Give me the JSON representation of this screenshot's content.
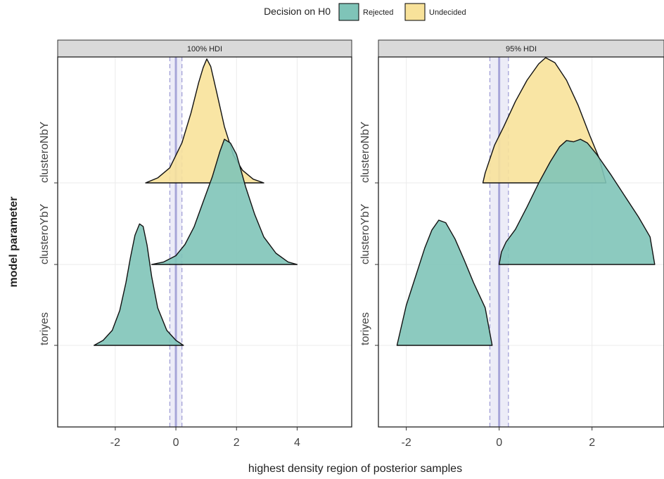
{
  "chart_data": {
    "type": "ridgeline",
    "legend": {
      "title": "Decision on H0",
      "position": "top",
      "entries": [
        {
          "label": "Rejected",
          "color": "#7fc4b8"
        },
        {
          "label": "Undecided",
          "color": "#f8e29a"
        }
      ]
    },
    "colors": {
      "Rejected": "#7fc4b8",
      "Undecided": "#f8e29a",
      "rope_line": "#9c9ad4",
      "rope_band": "#dcdcf0"
    },
    "xlabel": "highest density region of posterior samples",
    "ylabel": "model parameter",
    "parameters": [
      "toriyes",
      "clusteroYbY",
      "clusteroNbY"
    ],
    "rope": [
      -0.2,
      0.2
    ],
    "panels": [
      {
        "strip": "100% HDI",
        "xlim": [
          -3.9,
          5.8
        ],
        "xticks": [
          -2,
          0,
          2,
          4
        ],
        "xtick_labels": [
          "-2",
          "0",
          "2",
          "4"
        ],
        "ridges": [
          {
            "parameter": "toriyes",
            "decision": "Rejected",
            "range": [
              -2.7,
              0.25
            ],
            "points": [
              [
                -2.7,
                0
              ],
              [
                -2.4,
                0.04
              ],
              [
                -2.1,
                0.12
              ],
              [
                -1.85,
                0.28
              ],
              [
                -1.65,
                0.5
              ],
              [
                -1.5,
                0.7
              ],
              [
                -1.35,
                0.88
              ],
              [
                -1.2,
                0.97
              ],
              [
                -1.08,
                0.95
              ],
              [
                -0.95,
                0.8
              ],
              [
                -0.8,
                0.55
              ],
              [
                -0.6,
                0.3
              ],
              [
                -0.3,
                0.12
              ],
              [
                0,
                0.04
              ],
              [
                0.25,
                0
              ]
            ]
          },
          {
            "parameter": "clusteroYbY",
            "decision": "Rejected",
            "range": [
              -0.8,
              4.0
            ],
            "points": [
              [
                -0.8,
                0
              ],
              [
                -0.4,
                0.02
              ],
              [
                0,
                0.07
              ],
              [
                0.3,
                0.16
              ],
              [
                0.6,
                0.3
              ],
              [
                0.9,
                0.5
              ],
              [
                1.2,
                0.7
              ],
              [
                1.45,
                0.9
              ],
              [
                1.6,
                1.0
              ],
              [
                1.8,
                0.97
              ],
              [
                2.0,
                0.88
              ],
              [
                2.3,
                0.62
              ],
              [
                2.6,
                0.4
              ],
              [
                2.9,
                0.22
              ],
              [
                3.3,
                0.09
              ],
              [
                3.7,
                0.02
              ],
              [
                4.0,
                0
              ]
            ]
          },
          {
            "parameter": "clusteroNbY",
            "decision": "Undecided",
            "range": [
              -1.0,
              2.9
            ],
            "points": [
              [
                -1.0,
                0
              ],
              [
                -0.6,
                0.04
              ],
              [
                -0.2,
                0.12
              ],
              [
                0.2,
                0.32
              ],
              [
                0.5,
                0.56
              ],
              [
                0.75,
                0.8
              ],
              [
                0.9,
                0.92
              ],
              [
                1.02,
                0.99
              ],
              [
                1.15,
                0.93
              ],
              [
                1.35,
                0.72
              ],
              [
                1.6,
                0.45
              ],
              [
                1.9,
                0.22
              ],
              [
                2.2,
                0.1
              ],
              [
                2.55,
                0.03
              ],
              [
                2.9,
                0
              ]
            ]
          }
        ]
      },
      {
        "strip": "95% HDI",
        "xlim": [
          -2.6,
          3.55
        ],
        "xticks": [
          -2,
          0,
          2
        ],
        "xtick_labels": [
          "-2",
          "0",
          "2"
        ],
        "ridges": [
          {
            "parameter": "toriyes",
            "decision": "Rejected",
            "range": [
              -2.2,
              -0.15
            ],
            "points": [
              [
                -2.2,
                0
              ],
              [
                -2.0,
                0.32
              ],
              [
                -1.8,
                0.55
              ],
              [
                -1.6,
                0.78
              ],
              [
                -1.45,
                0.92
              ],
              [
                -1.3,
                1.0
              ],
              [
                -1.15,
                0.98
              ],
              [
                -0.95,
                0.85
              ],
              [
                -0.75,
                0.68
              ],
              [
                -0.55,
                0.5
              ],
              [
                -0.3,
                0.3
              ],
              [
                -0.15,
                0
              ]
            ]
          },
          {
            "parameter": "clusteroYbY",
            "decision": "Rejected",
            "range": [
              0.0,
              3.35
            ],
            "points": [
              [
                0,
                0
              ],
              [
                0.05,
                0.1
              ],
              [
                0.15,
                0.18
              ],
              [
                0.35,
                0.28
              ],
              [
                0.6,
                0.46
              ],
              [
                0.85,
                0.65
              ],
              [
                1.1,
                0.82
              ],
              [
                1.3,
                0.94
              ],
              [
                1.45,
                0.99
              ],
              [
                1.6,
                0.98
              ],
              [
                1.75,
                1.0
              ],
              [
                1.9,
                0.97
              ],
              [
                2.1,
                0.88
              ],
              [
                2.4,
                0.72
              ],
              [
                2.7,
                0.55
              ],
              [
                3.0,
                0.38
              ],
              [
                3.25,
                0.22
              ],
              [
                3.35,
                0
              ]
            ]
          },
          {
            "parameter": "clusteroNbY",
            "decision": "Undecided",
            "range": [
              -0.35,
              2.3
            ],
            "points": [
              [
                -0.35,
                0
              ],
              [
                -0.3,
                0.08
              ],
              [
                -0.1,
                0.3
              ],
              [
                0.1,
                0.45
              ],
              [
                0.35,
                0.65
              ],
              [
                0.6,
                0.82
              ],
              [
                0.85,
                0.95
              ],
              [
                1.0,
                1.0
              ],
              [
                1.2,
                0.96
              ],
              [
                1.45,
                0.82
              ],
              [
                1.7,
                0.62
              ],
              [
                1.95,
                0.38
              ],
              [
                2.15,
                0.2
              ],
              [
                2.3,
                0
              ]
            ]
          }
        ]
      }
    ]
  }
}
